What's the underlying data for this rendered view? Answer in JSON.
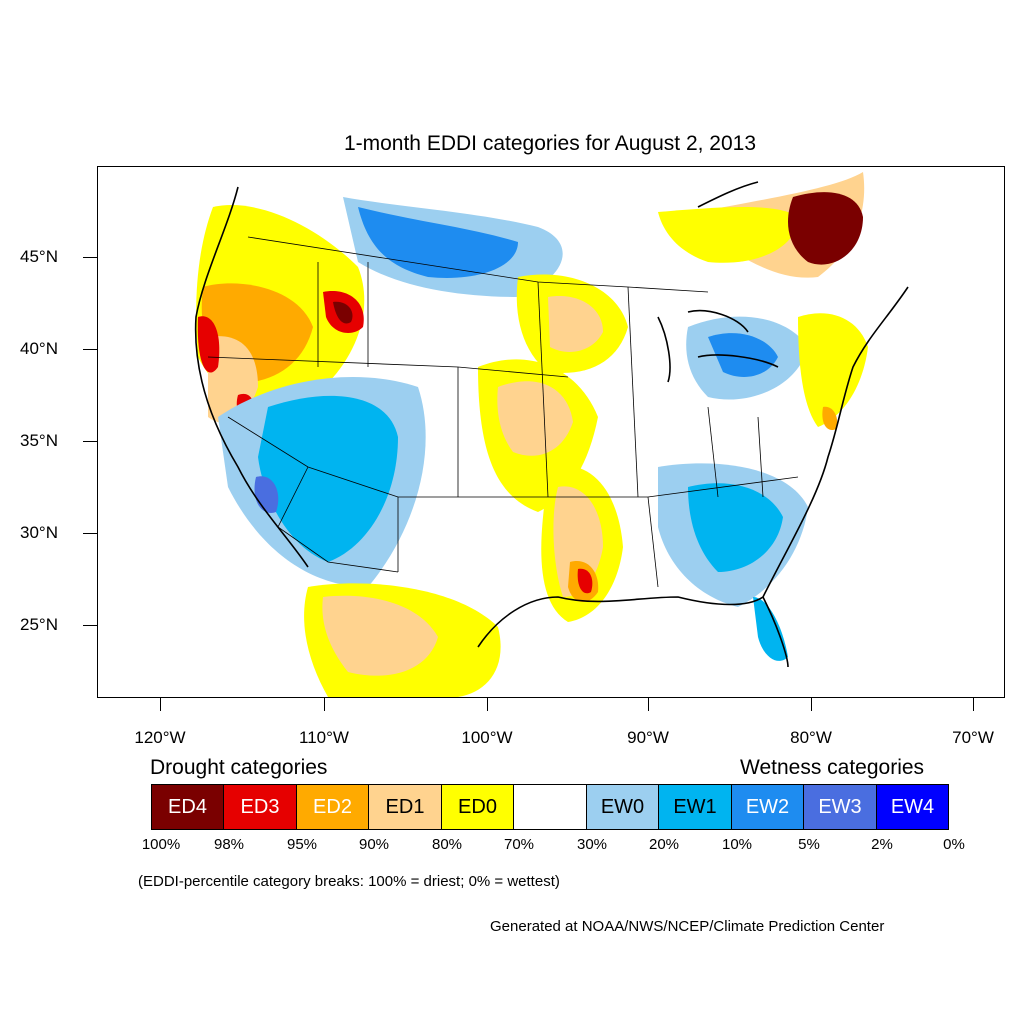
{
  "title": "1-month EDDI categories for August 2, 2013",
  "lat_labels": [
    "45°N",
    "40°N",
    "35°N",
    "30°N",
    "25°N"
  ],
  "lon_labels": [
    "120°W",
    "110°W",
    "100°W",
    "90°W",
    "80°W",
    "70°W"
  ],
  "legend": {
    "drought_heading": "Drought categories",
    "wetness_heading": "Wetness categories",
    "categories": [
      {
        "label": "ED4",
        "color": "#7a0000",
        "text_color": "#ffffff"
      },
      {
        "label": "ED3",
        "color": "#e60000",
        "text_color": "#ffffff"
      },
      {
        "label": "ED2",
        "color": "#ffaa00",
        "text_color": "#ffffff"
      },
      {
        "label": "ED1",
        "color": "#ffd38f",
        "text_color": "#000000"
      },
      {
        "label": "ED0",
        "color": "#ffff00",
        "text_color": "#000000"
      },
      {
        "label": "",
        "color": "#ffffff",
        "text_color": "#000000"
      },
      {
        "label": "EW0",
        "color": "#9ccff0",
        "text_color": "#000000"
      },
      {
        "label": "EW1",
        "color": "#00b4f0",
        "text_color": "#000000"
      },
      {
        "label": "EW2",
        "color": "#1e8cf0",
        "text_color": "#ffffff"
      },
      {
        "label": "EW3",
        "color": "#4a6ee0",
        "text_color": "#ffffff"
      },
      {
        "label": "EW4",
        "color": "#0000ff",
        "text_color": "#ffffff"
      }
    ],
    "breaks": [
      "100%",
      "98%",
      "95%",
      "90%",
      "80%",
      "70%",
      "30%",
      "20%",
      "10%",
      "5%",
      "2%",
      "0%"
    ]
  },
  "note": "(EDDI-percentile category breaks: 100% = driest; 0% = wettest)",
  "credit": "Generated at NOAA/NWS/NCEP/Climate Prediction Center"
}
